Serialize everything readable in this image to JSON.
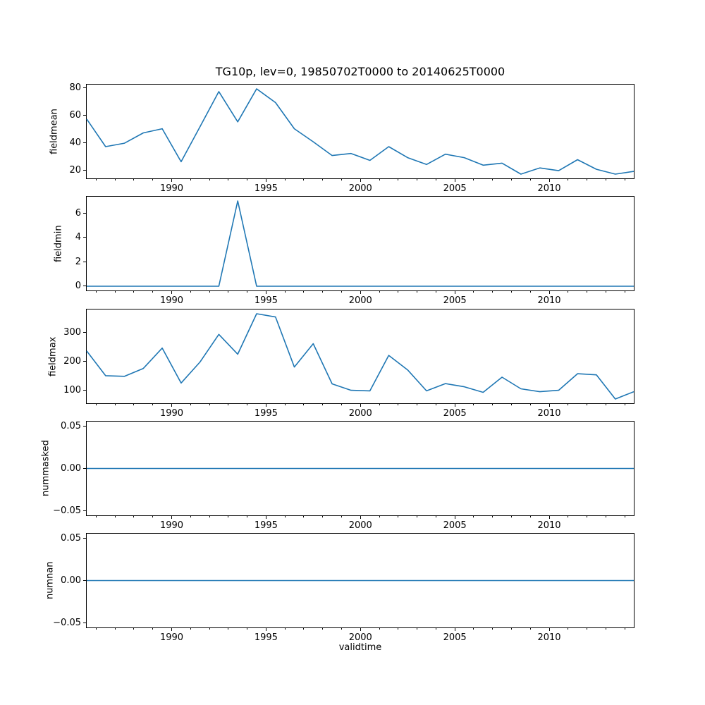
{
  "chart_data": {
    "type": "line",
    "title": "TG10p, lev=0, 19850702T0000 to 20140625T0000",
    "x_label": "validtime",
    "line_color": "#1f77b4",
    "grid": false,
    "legend": false,
    "xlim": [
      1985.5,
      2014.48
    ],
    "xticks": [
      1990,
      1995,
      2000,
      2005,
      2010
    ],
    "xtick_labels": [
      "1990",
      "1995",
      "2000",
      "2005",
      "2010"
    ],
    "xticks_minor_range": [
      1986,
      2014
    ],
    "x": [
      1985.5,
      1986.5,
      1987.5,
      1988.5,
      1989.5,
      1990.5,
      1991.5,
      1992.5,
      1993.5,
      1994.5,
      1995.5,
      1996.5,
      1997.5,
      1998.5,
      1999.5,
      2000.5,
      2001.5,
      2002.5,
      2003.5,
      2004.5,
      2005.5,
      2006.5,
      2007.5,
      2008.5,
      2009.5,
      2010.5,
      2011.5,
      2012.5,
      2013.5,
      2014.48
    ],
    "subplots": [
      {
        "name": "fieldmean",
        "ylabel": "fieldmean",
        "values": [
          57,
          37,
          39.5,
          47,
          50,
          26,
          51.5,
          77,
          55,
          79,
          69,
          50,
          40.5,
          30.5,
          32,
          27,
          37,
          29,
          24,
          31.5,
          29,
          23.5,
          25,
          17,
          21.5,
          19.5,
          27.5,
          20.5,
          17,
          19
        ],
        "yticks": [
          20,
          40,
          60,
          80
        ],
        "ytick_labels": [
          "20",
          "40",
          "60",
          "80"
        ],
        "ylim": [
          13.9,
          82.1
        ]
      },
      {
        "name": "fieldmin",
        "ylabel": "fieldmin",
        "values": [
          0,
          0,
          0,
          0,
          0,
          0,
          0,
          0,
          7,
          0,
          0,
          0,
          0,
          0,
          0,
          0,
          0,
          0,
          0,
          0,
          0,
          0,
          0,
          0,
          0,
          0,
          0,
          0,
          0,
          0
        ],
        "yticks": [
          0,
          2,
          4,
          6
        ],
        "ytick_labels": [
          "0",
          "2",
          "4",
          "6"
        ],
        "ylim": [
          -0.35,
          7.35
        ]
      },
      {
        "name": "fieldmax",
        "ylabel": "fieldmax",
        "values": [
          235,
          150,
          148,
          175,
          245,
          125,
          197,
          292,
          224,
          363,
          352,
          180,
          260,
          122,
          100,
          98,
          220,
          170,
          98,
          123,
          112,
          93,
          145,
          105,
          95,
          100,
          157,
          153,
          70,
          95
        ],
        "yticks": [
          100,
          200,
          300
        ],
        "ytick_labels": [
          "100",
          "200",
          "300"
        ],
        "ylim": [
          55.35,
          377.65
        ]
      },
      {
        "name": "nummasked",
        "ylabel": "nummasked",
        "values": [
          0,
          0,
          0,
          0,
          0,
          0,
          0,
          0,
          0,
          0,
          0,
          0,
          0,
          0,
          0,
          0,
          0,
          0,
          0,
          0,
          0,
          0,
          0,
          0,
          0,
          0,
          0,
          0,
          0,
          0
        ],
        "yticks": [
          -0.05,
          0.0,
          0.05
        ],
        "ytick_labels": [
          "−0.05",
          "0.00",
          "0.05"
        ],
        "ylim": [
          -0.055,
          0.055
        ]
      },
      {
        "name": "numnan",
        "ylabel": "numnan",
        "values": [
          0,
          0,
          0,
          0,
          0,
          0,
          0,
          0,
          0,
          0,
          0,
          0,
          0,
          0,
          0,
          0,
          0,
          0,
          0,
          0,
          0,
          0,
          0,
          0,
          0,
          0,
          0,
          0,
          0,
          0
        ],
        "yticks": [
          -0.05,
          0.0,
          0.05
        ],
        "ytick_labels": [
          "−0.05",
          "0.00",
          "0.05"
        ],
        "ylim": [
          -0.055,
          0.055
        ]
      }
    ]
  }
}
